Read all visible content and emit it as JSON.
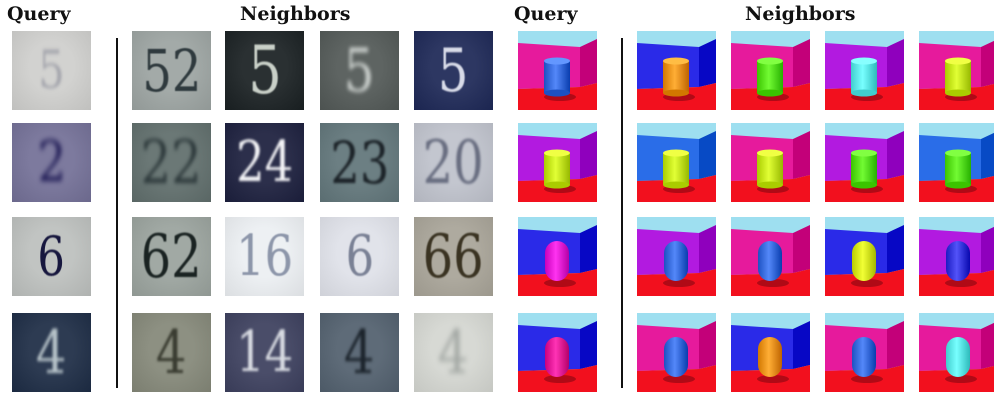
{
  "headers": {
    "left_query": "Query",
    "left_neighbors": "Neighbors",
    "right_query": "Query",
    "right_neighbors": "Neighbors"
  },
  "svhn": {
    "rows": [
      {
        "query": {
          "text": "5",
          "bg": "#d2d2d0",
          "fg": "#a6a7ae",
          "size": 52,
          "blur": 1.8
        },
        "neighbors": [
          {
            "text": "52",
            "bg": "#a3aaa8",
            "fg": "#2f3a3e",
            "size": 58,
            "blur": 0.6
          },
          {
            "text": "5",
            "bg": "#2a3032",
            "fg": "#c9d0c8",
            "size": 66,
            "blur": 0.8
          },
          {
            "text": "5",
            "bg": "#5e6462",
            "fg": "#cdd2cf",
            "size": 60,
            "blur": 2.2
          },
          {
            "text": "5",
            "bg": "#2d3762",
            "fg": "#d8dbe8",
            "size": 60,
            "blur": 0.8
          }
        ]
      },
      {
        "query": {
          "text": "2",
          "bg": "#7d7a9e",
          "fg": "#1e1a54",
          "size": 56,
          "blur": 2.6
        },
        "neighbors": [
          {
            "text": "22",
            "bg": "#6b7876",
            "fg": "#2e3a3c",
            "size": 60,
            "blur": 2.0
          },
          {
            "text": "24",
            "bg": "#2c2f4b",
            "fg": "#f3f3f6",
            "size": 56,
            "blur": 1.4
          },
          {
            "text": "23",
            "bg": "#6c7f83",
            "fg": "#1c2328",
            "size": 58,
            "blur": 1.4
          },
          {
            "text": "20",
            "bg": "#c3c6cf",
            "fg": "#686d80",
            "size": 60,
            "blur": 1.2
          }
        ]
      },
      {
        "query": {
          "text": "6",
          "bg": "#c1c4c2",
          "fg": "#17173e",
          "size": 54,
          "blur": 0.4
        },
        "neighbors": [
          {
            "text": "62",
            "bg": "#a1a9a4",
            "fg": "#1a2322",
            "size": 60,
            "blur": 0.7
          },
          {
            "text": "16",
            "bg": "#edf0f3",
            "fg": "#8d96aa",
            "size": 56,
            "blur": 0.5
          },
          {
            "text": "6",
            "bg": "#e1e3ea",
            "fg": "#7a8195",
            "size": 56,
            "blur": 0.8
          },
          {
            "text": "66",
            "bg": "#aeaa9f",
            "fg": "#3a3322",
            "size": 60,
            "blur": 0.7
          }
        ]
      },
      {
        "query": {
          "text": "4",
          "bg": "#2d3b52",
          "fg": "#b6c2c8",
          "size": 60,
          "blur": 1.5
        },
        "neighbors": [
          {
            "text": "4",
            "bg": "#8d9082",
            "fg": "#3a3c31",
            "size": 60,
            "blur": 1.4
          },
          {
            "text": "14",
            "bg": "#4a4d69",
            "fg": "#d8dbe2",
            "size": 56,
            "blur": 1.4
          },
          {
            "text": "4",
            "bg": "#5e6b78",
            "fg": "#1c242c",
            "size": 60,
            "blur": 1.7
          },
          {
            "text": "4",
            "bg": "#d7d9d4",
            "fg": "#a2a7a3",
            "size": 60,
            "blur": 2.6
          }
        ]
      }
    ]
  },
  "shapes3d": {
    "rows": [
      {
        "query": {
          "sky": "#9edff0",
          "wall": "#e61a9c",
          "floor": "#f2101e",
          "obj": "#3b6fe0",
          "shape": "cylinder"
        },
        "neighbors": [
          {
            "sky": "#9edff0",
            "wall": "#2a2ae8",
            "floor": "#f2101e",
            "obj": "#f0951c",
            "shape": "cylinder"
          },
          {
            "sky": "#9edff0",
            "wall": "#e61a9c",
            "floor": "#f2101e",
            "obj": "#59e21a",
            "shape": "cylinder"
          },
          {
            "sky": "#9edff0",
            "wall": "#b21ae0",
            "floor": "#f2101e",
            "obj": "#5fecec",
            "shape": "cylinder"
          },
          {
            "sky": "#9edff0",
            "wall": "#e61a9c",
            "floor": "#f2101e",
            "obj": "#c8ea1c",
            "shape": "cylinder"
          }
        ]
      },
      {
        "query": {
          "sky": "#9edff0",
          "wall": "#b21ae0",
          "floor": "#f2101e",
          "obj": "#c8ea1c",
          "shape": "cylinder"
        },
        "neighbors": [
          {
            "sky": "#9edff0",
            "wall": "#2a6de8",
            "floor": "#f2101e",
            "obj": "#c8ea1c",
            "shape": "cylinder"
          },
          {
            "sky": "#9edff0",
            "wall": "#e61a9c",
            "floor": "#f2101e",
            "obj": "#c8ea1c",
            "shape": "cylinder"
          },
          {
            "sky": "#9edff0",
            "wall": "#b21ae0",
            "floor": "#f2101e",
            "obj": "#59e21a",
            "shape": "cylinder"
          },
          {
            "sky": "#9edff0",
            "wall": "#2a6de8",
            "floor": "#f2101e",
            "obj": "#59e21a",
            "shape": "cylinder"
          }
        ]
      },
      {
        "query": {
          "sky": "#9edff0",
          "wall": "#2a2ae8",
          "floor": "#f2101e",
          "obj": "#e61ad8",
          "shape": "capsule"
        },
        "neighbors": [
          {
            "sky": "#9edff0",
            "wall": "#b21ae0",
            "floor": "#f2101e",
            "obj": "#3b6fe0",
            "shape": "capsule"
          },
          {
            "sky": "#9edff0",
            "wall": "#e61a9c",
            "floor": "#f2101e",
            "obj": "#3b6fe0",
            "shape": "capsule"
          },
          {
            "sky": "#9edff0",
            "wall": "#2a2ae8",
            "floor": "#f2101e",
            "obj": "#d8ea1c",
            "shape": "capsule"
          },
          {
            "sky": "#9edff0",
            "wall": "#b21ae0",
            "floor": "#f2101e",
            "obj": "#3a3ae0",
            "shape": "capsule"
          }
        ]
      },
      {
        "query": {
          "sky": "#9edff0",
          "wall": "#2a2ae8",
          "floor": "#f2101e",
          "obj": "#e61a9c",
          "shape": "capsule"
        },
        "neighbors": [
          {
            "sky": "#9edff0",
            "wall": "#e61a9c",
            "floor": "#f2101e",
            "obj": "#3b6fe0",
            "shape": "capsule"
          },
          {
            "sky": "#9edff0",
            "wall": "#2a2ae8",
            "floor": "#f2101e",
            "obj": "#f0951c",
            "shape": "capsule"
          },
          {
            "sky": "#9edff0",
            "wall": "#e61a9c",
            "floor": "#f2101e",
            "obj": "#3b6fe0",
            "shape": "capsule"
          },
          {
            "sky": "#9edff0",
            "wall": "#e61a9c",
            "floor": "#f2101e",
            "obj": "#5fecec",
            "shape": "capsule"
          }
        ]
      }
    ]
  }
}
